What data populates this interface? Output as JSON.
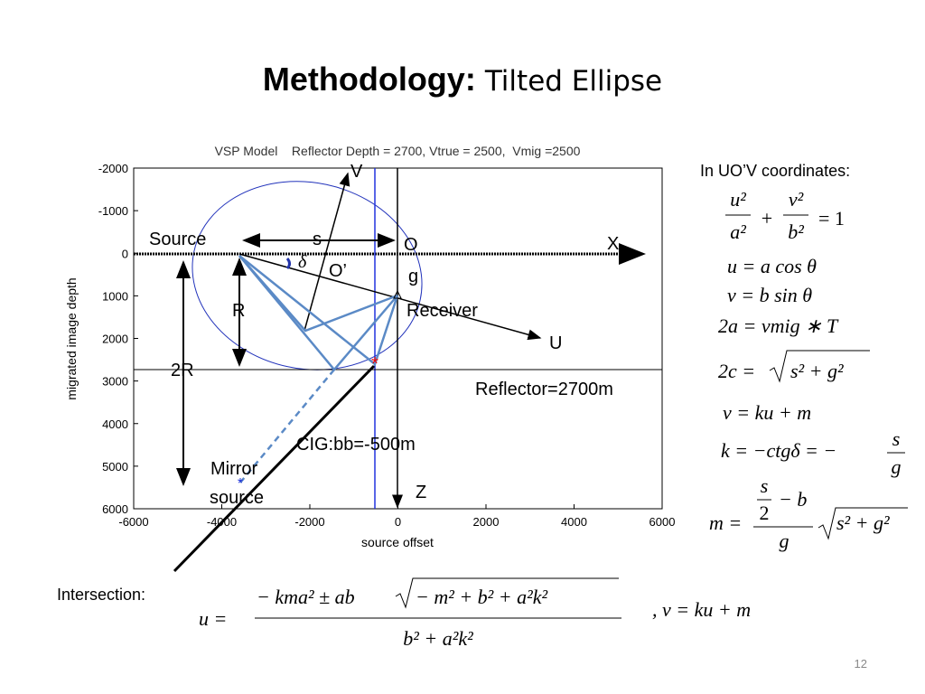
{
  "title": {
    "bold": "Methodology:",
    "rest": "Tilted Ellipse"
  },
  "figure": {
    "title": "VSP Model    Reflector Depth = 2700, Vtrue = 2500,  Vmig =2500",
    "xlabel": "source offset",
    "ylabel": "migrated image depth",
    "xlim": [
      -6000,
      6000
    ],
    "ylim": [
      -2000,
      6000
    ],
    "xticks": [
      -6000,
      -4000,
      -2000,
      0,
      2000,
      4000,
      6000
    ],
    "yticks": [
      -2000,
      -1000,
      0,
      1000,
      2000,
      3000,
      4000,
      5000,
      6000
    ],
    "labels": {
      "source": "Source",
      "s": "s",
      "O": "O",
      "X": "X",
      "V": "V",
      "delta": "δ",
      "O_prime": "O’",
      "g": "g",
      "R": "R",
      "receiver": "Receiver",
      "U": "U",
      "two_R": "2R",
      "reflector": "Reflector=2700m",
      "cig": "CIG:bb=-500m",
      "mirror": "Mirror",
      "mirror_source": "source",
      "Z": "Z"
    }
  },
  "equations": {
    "heading": "In UO’V coordinates:",
    "e1": {
      "num1": "u²",
      "den1": "a²",
      "plus": "+",
      "num2": "v²",
      "den2": "b²",
      "rhs": "= 1"
    },
    "e2": "u = a cos θ",
    "e3": "v = b sin θ",
    "e4": "2a = vmig ∗ T",
    "e5": {
      "lhs": "2c =",
      "radicand": "s² + g²"
    },
    "e6": "v = ku + m",
    "e7": {
      "lhs": "k = −ctgδ = −",
      "num": "s",
      "den": "g"
    },
    "e8": {
      "lhs": "m =",
      "inner_num": "s",
      "inner_den": "2",
      "minus_b": "− b",
      "den": "g",
      "radicand": "s² + g²"
    }
  },
  "intersection": {
    "label": "Intersection:",
    "lhs": "u =",
    "num": "− kma² ± ab",
    "radicand": "− m² + b² + a²k²",
    "den": "b² + a²k²",
    "tail": ", v = ku + m"
  },
  "page_number": "12"
}
